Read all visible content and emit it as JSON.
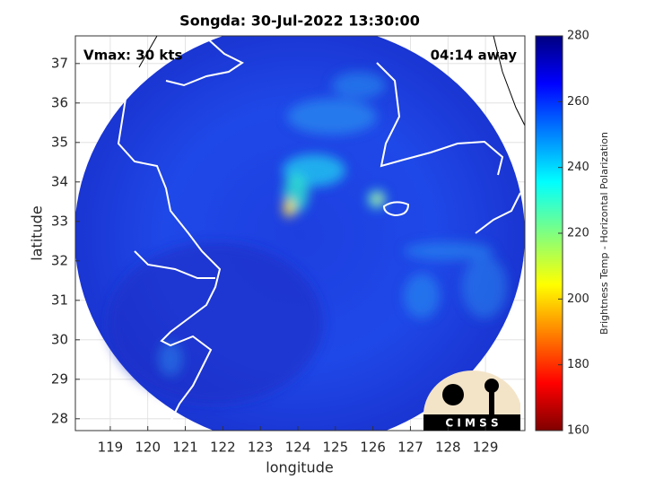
{
  "chart_data": {
    "type": "map",
    "title": "Songda: 30-Jul-2022 13:30:00",
    "annotations": [
      "Vmax: 30 kts",
      "04:14 away"
    ],
    "xlabel": "longitude",
    "ylabel": "latitude",
    "xlim": [
      118.07,
      130.05
    ],
    "ylim": [
      27.7,
      37.7
    ],
    "xticks": [
      119,
      120,
      121,
      122,
      123,
      124,
      125,
      126,
      127,
      128,
      129
    ],
    "yticks": [
      28,
      29,
      30,
      31,
      32,
      33,
      34,
      35,
      36,
      37
    ],
    "grid": true,
    "colorbar": {
      "label": "Brightness Temp - Horizontal Polarization",
      "lim": [
        160,
        280
      ],
      "ticks": [
        160,
        180,
        200,
        220,
        240,
        260,
        280
      ]
    },
    "logo": "C I M S S"
  }
}
